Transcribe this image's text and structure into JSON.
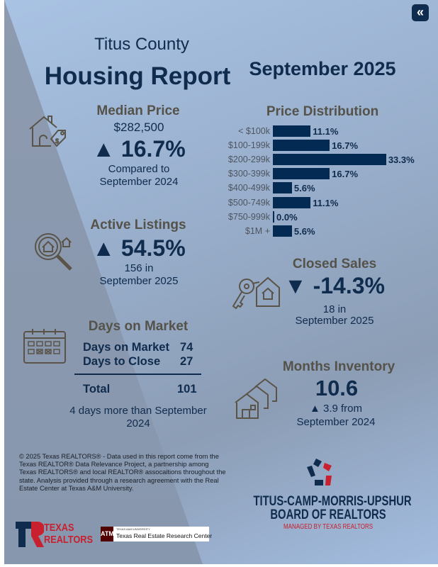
{
  "header": {
    "county": "Titus County",
    "title": "Housing Report",
    "period": "September 2025",
    "collapse_icon": "double-chevron-left-icon"
  },
  "median_price": {
    "heading": "Median Price",
    "value": "$282,500",
    "change": "▲ 16.7%",
    "note1": "Compared to",
    "note2": "September 2024",
    "icon": "house-price-tag-icon"
  },
  "active_listings": {
    "heading": "Active Listings",
    "change": "▲ 54.5%",
    "note1": "156 in",
    "note2": "September 2025",
    "icon": "house-search-icon"
  },
  "days_on_market": {
    "heading": "Days on Market",
    "rows": [
      {
        "label": "Days on Market",
        "value": "74"
      },
      {
        "label": "Days to Close",
        "value": "27"
      }
    ],
    "total_label": "Total",
    "total_value": "101",
    "note1": "4 days more than September",
    "note2": "2024",
    "icon": "calendar-icon"
  },
  "price_distribution": {
    "heading": "Price Distribution",
    "rows": [
      {
        "label": "< $100k",
        "value": 11.1,
        "text": "11.1%"
      },
      {
        "label": "$100-199k",
        "value": 16.7,
        "text": "16.7%"
      },
      {
        "label": "$200-299k",
        "value": 33.3,
        "text": "33.3%"
      },
      {
        "label": "$300-399k",
        "value": 16.7,
        "text": "16.7%"
      },
      {
        "label": "$400-499k",
        "value": 5.6,
        "text": "5.6%"
      },
      {
        "label": "$500-749k",
        "value": 11.1,
        "text": "11.1%"
      },
      {
        "label": "$750-999k",
        "value": 0.0,
        "text": "0.0%"
      },
      {
        "label": "$1M +",
        "value": 5.6,
        "text": "5.6%"
      }
    ],
    "bar_color": "#032a52"
  },
  "closed_sales": {
    "heading": "Closed Sales",
    "change": "▼ -14.3%",
    "note1": "18 in",
    "note2": "September 2025",
    "icon": "key-house-icon"
  },
  "months_inventory": {
    "heading": "Months Inventory",
    "value": "10.6",
    "change": "▲ 3.9 from",
    "note2": "September 2024",
    "icon": "houses-icon"
  },
  "footer": {
    "disclaimer": [
      "© 2025 Texas REALTORS® - Data used in this report come from the",
      "Texas REALTOR® Data Relevance Project, a partnership among",
      "Texas REALTORS® and local REALTOR® assocaitions throughout the",
      "state. Analysis provided through a research agreement with the Real",
      "Estate Center at Texas A&M University."
    ],
    "board_line1": "TITUS-CAMP-MORRIS-UPSHUR",
    "board_line2": "BOARD OF REALTORS",
    "board_sub": "MANAGED BY TEXAS REALTORS",
    "tr_logo_1": "TEXAS",
    "tr_logo_2": "REALTORS",
    "tamu_small": "TEXAS A&M UNIVERSITY",
    "tamu_name": "Texas Real Estate Research Center"
  },
  "colors": {
    "navy": "#0f2b4d",
    "red": "#c8202f",
    "heading_gray": "#55524a"
  }
}
